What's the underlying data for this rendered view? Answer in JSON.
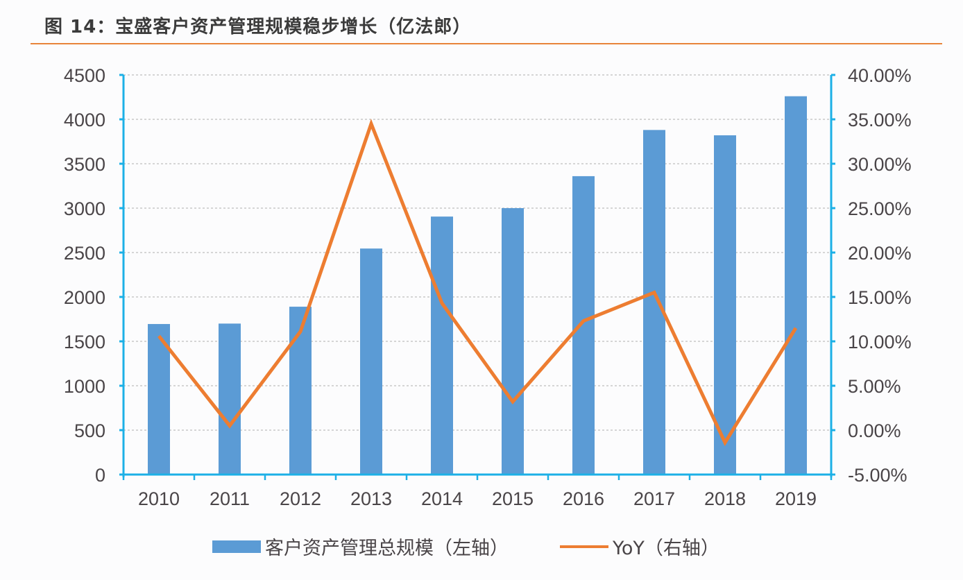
{
  "title": "图 14：宝盛客户资产管理规模稳步增长（亿法郎）",
  "colors": {
    "bar": "#5b9bd5",
    "line": "#ed7d31",
    "axis": "#1cb0e6",
    "title_rule": "#e8843a"
  },
  "legend": {
    "bar_label": "客户资产管理总规模（左轴）",
    "line_label": "YoY（右轴）"
  },
  "chart_data": {
    "type": "bar+line",
    "title": "图 14：宝盛客户资产管理规模稳步增长（亿法郎）",
    "categories": [
      "2010",
      "2011",
      "2012",
      "2013",
      "2014",
      "2015",
      "2016",
      "2017",
      "2018",
      "2019"
    ],
    "series": [
      {
        "name": "客户资产管理总规模（左轴）",
        "type": "bar",
        "axis": "left",
        "values": [
          1695,
          1700,
          1890,
          2545,
          2905,
          3000,
          3360,
          3880,
          3820,
          4260
        ]
      },
      {
        "name": "YoY（右轴）",
        "type": "line",
        "axis": "right",
        "values": [
          10.6,
          0.5,
          11.1,
          34.5,
          14.3,
          3.2,
          12.3,
          15.5,
          -1.4,
          11.5
        ]
      }
    ],
    "left_axis": {
      "ylim": [
        0,
        4500
      ],
      "ticks": [
        "0",
        "500",
        "1000",
        "1500",
        "2000",
        "2500",
        "3000",
        "3500",
        "4000",
        "4500"
      ]
    },
    "right_axis": {
      "ylim": [
        -5,
        40
      ],
      "ticks": [
        "-5.00%",
        "0.00%",
        "5.00%",
        "10.00%",
        "15.00%",
        "20.00%",
        "25.00%",
        "30.00%",
        "35.00%",
        "40.00%"
      ]
    },
    "grid": true,
    "legend_position": "bottom"
  }
}
